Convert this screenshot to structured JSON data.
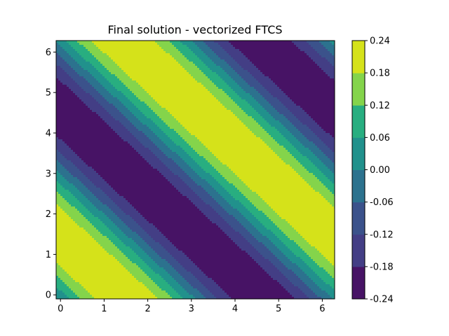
{
  "chart_data": {
    "type": "contourf",
    "title": "Final solution - vectorized FTCS",
    "xlabel": "",
    "ylabel": "",
    "xlim": [
      -0.1,
      6.283
    ],
    "ylim": [
      -0.1,
      6.283
    ],
    "x_ticks": [
      0,
      1,
      2,
      3,
      4,
      5,
      6
    ],
    "y_ticks": [
      0,
      1,
      2,
      3,
      4,
      5,
      6
    ],
    "field": {
      "description_formula": "0.24 * sin(x + y + phase)",
      "amplitude": 0.24,
      "phase": 0.15
    },
    "levels": [
      -0.24,
      -0.18,
      -0.12,
      -0.06,
      0.0,
      0.06,
      0.12,
      0.18,
      0.24
    ],
    "level_labels": [
      "-0.24",
      "-0.18",
      "-0.12",
      "-0.06",
      "0.00",
      "0.06",
      "0.12",
      "0.18",
      "0.24"
    ],
    "colors": [
      "#481f70",
      "#443983",
      "#3b528b",
      "#2c728e",
      "#21918c",
      "#28ae80",
      "#5ec962",
      "#addc30",
      "#fde725"
    ],
    "band_colors": [
      "#471365",
      "#433e85",
      "#3b528b",
      "#2c728e",
      "#21918c",
      "#28ae80",
      "#84d44b",
      "#d5e21a"
    ],
    "colorbar": {
      "placement": "right"
    },
    "grid": false
  }
}
